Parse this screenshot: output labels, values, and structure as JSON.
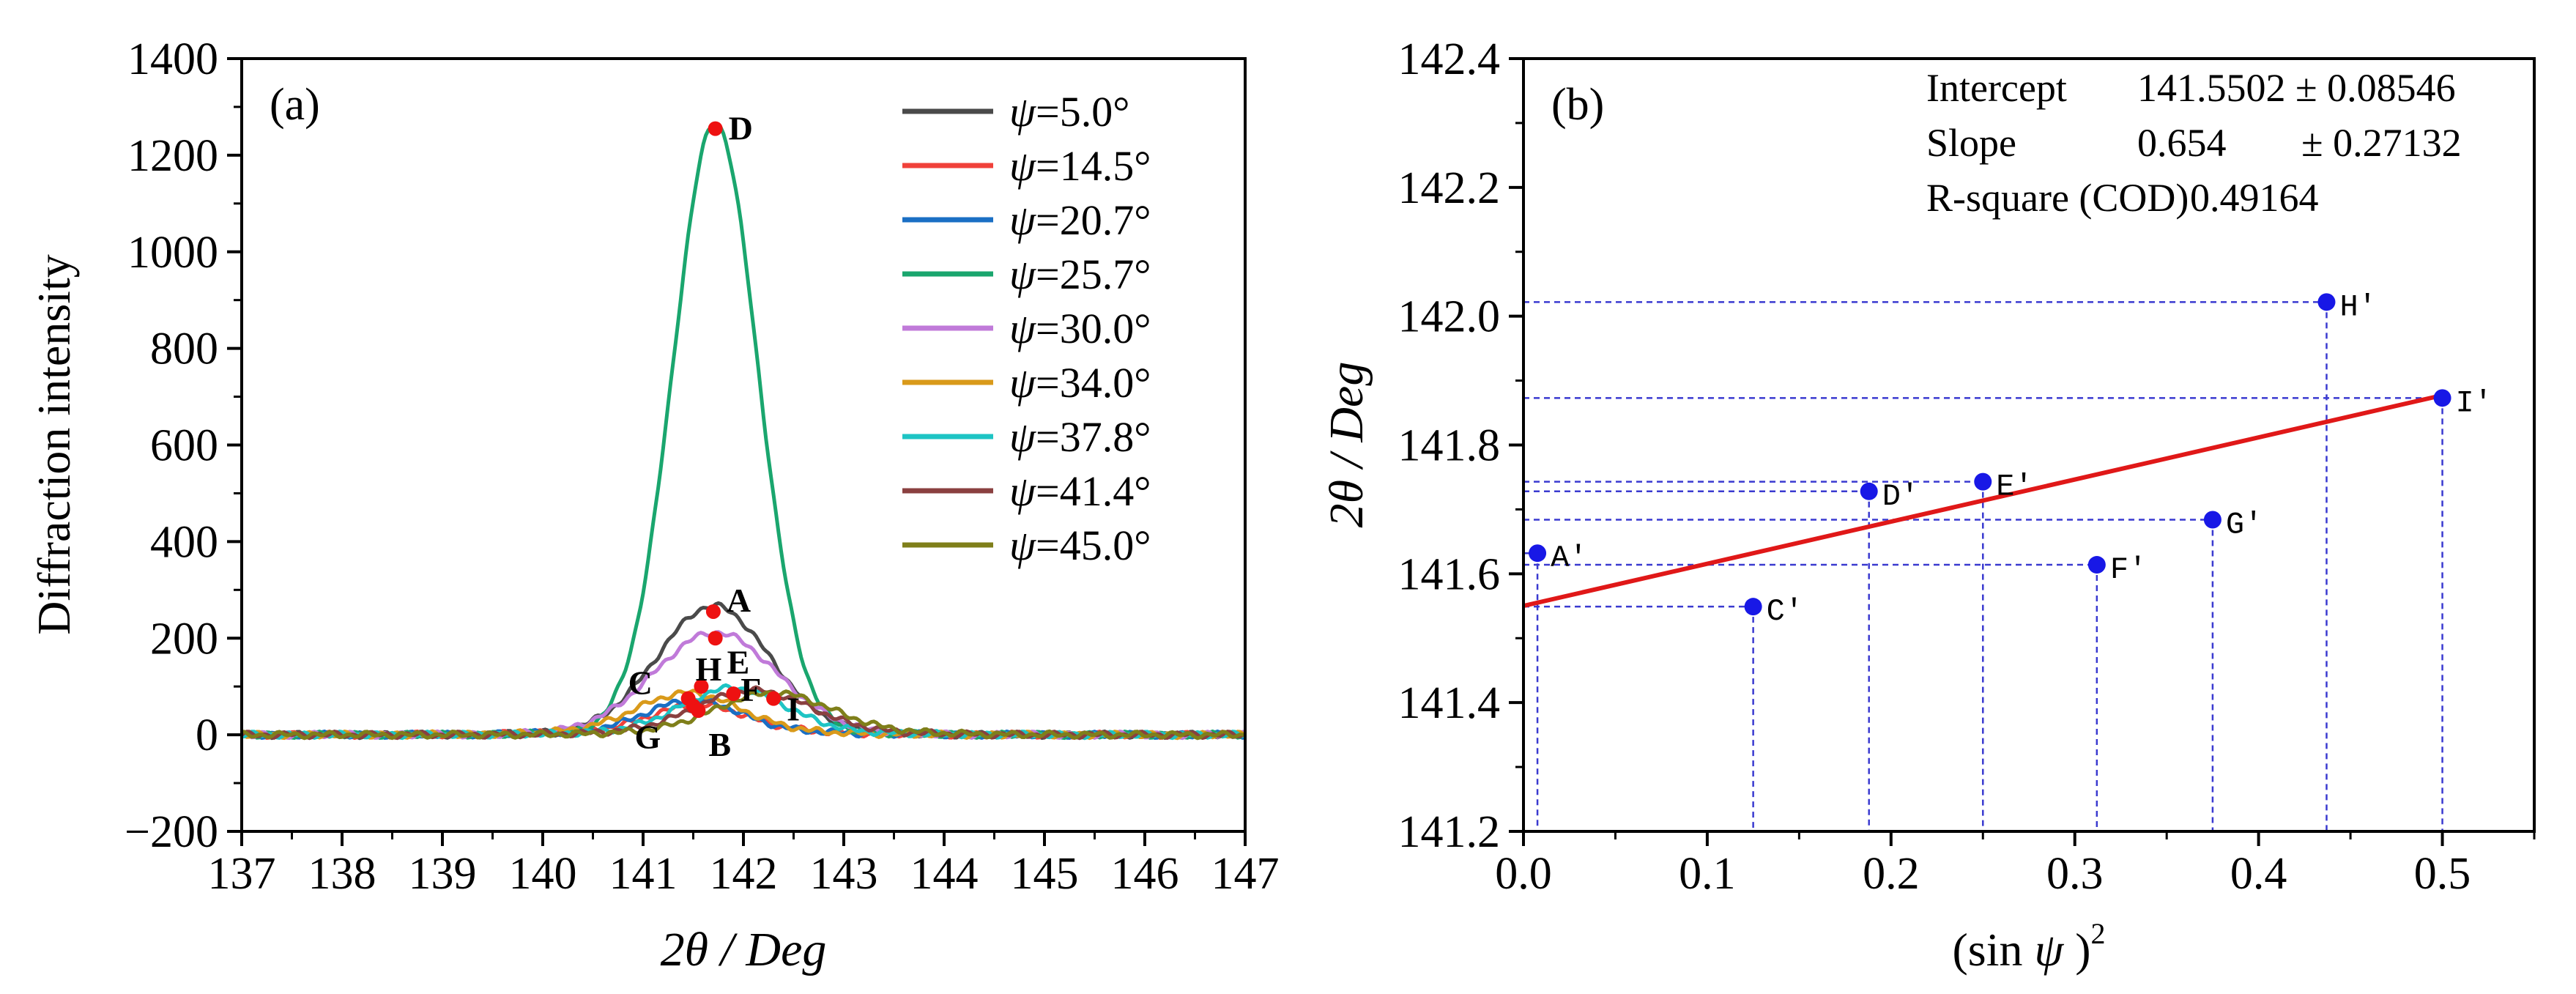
{
  "chart_data": [
    {
      "type": "line",
      "panel_label": "(a)",
      "xlabel_prefix": "2",
      "xlabel_theta": "θ",
      "xlabel_suffix": " / Deg",
      "ylabel": "Diffraction intensity",
      "xlim": [
        137,
        147
      ],
      "ylim": [
        -200,
        1400
      ],
      "xticks": [
        "137",
        "138",
        "139",
        "140",
        "141",
        "142",
        "143",
        "144",
        "145",
        "146",
        "147"
      ],
      "yticks": [
        "−200",
        "0",
        "200",
        "400",
        "600",
        "800",
        "1000",
        "1200",
        "1400"
      ],
      "grid": false,
      "legend_position": "top-right",
      "series": [
        {
          "name": "ψ=5.0°",
          "psi": "ψ",
          "rest": "=5.0°",
          "color": "#4a4a4a",
          "peak_center": 141.7,
          "peak_height": 255,
          "peak_width": 0.55
        },
        {
          "name": "ψ=14.5°",
          "psi": "ψ",
          "rest": "=14.5°",
          "color": "#f0413a",
          "peak_center": 141.55,
          "peak_height": 50,
          "peak_width": 0.45
        },
        {
          "name": "ψ=20.7°",
          "psi": "ψ",
          "rest": "=20.7°",
          "color": "#1a6fc4",
          "peak_center": 141.5,
          "peak_height": 60,
          "peak_width": 0.45
        },
        {
          "name": "ψ=25.7°",
          "psi": "ψ",
          "rest": "=25.7°",
          "color": "#1aa66e",
          "peak_center": 141.72,
          "peak_height": 1255,
          "peak_width": 0.42
        },
        {
          "name": "ψ=30.0°",
          "psi": "ψ",
          "rest": "=30.0°",
          "color": "#c07ad9",
          "peak_center": 141.72,
          "peak_height": 200,
          "peak_width": 0.6
        },
        {
          "name": "ψ=34.0°",
          "psi": "ψ",
          "rest": "=34.0°",
          "color": "#d99a1a",
          "peak_center": 141.45,
          "peak_height": 75,
          "peak_width": 0.5
        },
        {
          "name": "ψ=37.8°",
          "psi": "ψ",
          "rest": "=37.8°",
          "color": "#1ec4c4",
          "peak_center": 141.9,
          "peak_height": 85,
          "peak_width": 0.5
        },
        {
          "name": "ψ=41.4°",
          "psi": "ψ",
          "rest": "=41.4°",
          "color": "#8a4040",
          "peak_center": 142.1,
          "peak_height": 80,
          "peak_width": 0.55
        },
        {
          "name": "ψ=45.0°",
          "psi": "ψ",
          "rest": "=45.0°",
          "color": "#7f7f1a",
          "peak_center": 142.3,
          "peak_height": 75,
          "peak_width": 0.55
        }
      ],
      "peak_points": [
        {
          "label": "D",
          "x": 141.72,
          "y": 1255,
          "dx": 18,
          "dy": 15
        },
        {
          "label": "A",
          "x": 141.7,
          "y": 255,
          "dx": 18,
          "dy": 0
        },
        {
          "label": "E",
          "x": 141.72,
          "y": 200,
          "dx": 16,
          "dy": 48
        },
        {
          "label": "H",
          "x": 141.58,
          "y": 100,
          "dx": -8,
          "dy": -8
        },
        {
          "label": "C",
          "x": 141.45,
          "y": 75,
          "dx": -82,
          "dy": -6
        },
        {
          "label": "F",
          "x": 141.9,
          "y": 85,
          "dx": 10,
          "dy": 10
        },
        {
          "label": "I",
          "x": 142.3,
          "y": 75,
          "dx": 18,
          "dy": 30
        },
        {
          "label": "G",
          "x": 141.5,
          "y": 60,
          "dx": -80,
          "dy": 58
        },
        {
          "label": "B",
          "x": 141.55,
          "y": 50,
          "dx": 14,
          "dy": 62
        }
      ],
      "peak_point_color": "#ee1111"
    },
    {
      "type": "scatter",
      "panel_label": "(b)",
      "xlabel_main": "(sin ",
      "xlabel_psi": "ψ",
      "xlabel_close": " )",
      "xlabel_sup": "2",
      "ylabel_prefix": "2",
      "ylabel_theta": "θ",
      "ylabel_suffix": " / Deg",
      "xlim": [
        0,
        0.55
      ],
      "ylim": [
        141.2,
        142.4
      ],
      "xticks": [
        "0.0",
        "0.1",
        "0.2",
        "0.3",
        "0.4",
        "0.5"
      ],
      "xtick_values": [
        0,
        0.1,
        0.2,
        0.3,
        0.4,
        0.5
      ],
      "yticks": [
        "141.2",
        "141.4",
        "141.6",
        "141.8",
        "142.0",
        "142.2",
        "142.4"
      ],
      "ytick_values": [
        141.2,
        141.4,
        141.6,
        141.8,
        142.0,
        142.2,
        142.4
      ],
      "grid": false,
      "point_color": "#1818e6",
      "guide_color": "#3a3ad0",
      "points": [
        {
          "label": "A'",
          "x": 0.0076,
          "y": 141.632
        },
        {
          "label": "C'",
          "x": 0.125,
          "y": 141.549
        },
        {
          "label": "D'",
          "x": 0.188,
          "y": 141.728
        },
        {
          "label": "E'",
          "x": 0.25,
          "y": 141.743
        },
        {
          "label": "F'",
          "x": 0.312,
          "y": 141.614
        },
        {
          "label": "G'",
          "x": 0.375,
          "y": 141.684
        },
        {
          "label": "H'",
          "x": 0.437,
          "y": 142.022
        },
        {
          "label": "I'",
          "x": 0.5,
          "y": 141.873
        }
      ],
      "fit": {
        "intercept": 141.5502,
        "slope": 0.654,
        "color": "#e01818",
        "x_range": [
          0,
          0.5
        ]
      },
      "stats": {
        "intercept_label": "Intercept",
        "intercept_value": "141.5502 ± 0.08546",
        "slope_label": "Slope",
        "slope_value": "0.654",
        "slope_err": "± 0.27132",
        "r2_label": "R-square (COD)",
        "r2_value": "0.49164"
      }
    }
  ]
}
